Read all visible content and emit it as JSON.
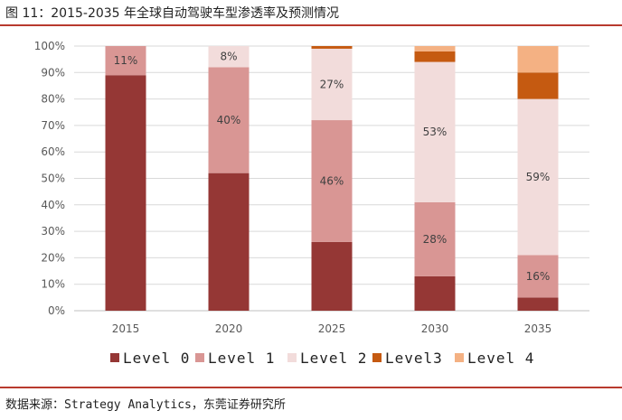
{
  "header": {
    "title": "图 11：2015-2035 年全球自动驾驶车型渗透率及预测情况"
  },
  "footer": {
    "source": "数据来源：Strategy Analytics，东莞证券研究所"
  },
  "chart_data": {
    "type": "bar",
    "stacked": true,
    "title": "",
    "xlabel": "",
    "ylabel": "",
    "ylim": [
      0,
      100
    ],
    "y_ticks": [
      "0%",
      "10%",
      "20%",
      "30%",
      "40%",
      "50%",
      "60%",
      "70%",
      "80%",
      "90%",
      "100%"
    ],
    "categories": [
      "2015",
      "2020",
      "2025",
      "2030",
      "2035"
    ],
    "grid": true,
    "legend_position": "bottom",
    "series": [
      {
        "name": "Level 0",
        "color": "#953735",
        "values": [
          89,
          52,
          26,
          13,
          5
        ],
        "labels": [
          "",
          "",
          "",
          "",
          ""
        ]
      },
      {
        "name": "Level 1",
        "color": "#d99694",
        "values": [
          11,
          40,
          46,
          28,
          16
        ],
        "labels": [
          "11%",
          "40%",
          "46%",
          "28%",
          "16%"
        ]
      },
      {
        "name": "Level 2",
        "color": "#f2dcdb",
        "values": [
          0,
          8,
          27,
          53,
          59
        ],
        "labels": [
          "",
          "8%",
          "27%",
          "53%",
          "59%"
        ]
      },
      {
        "name": "Level3",
        "color": "#c55a11",
        "values": [
          0,
          0,
          1,
          4,
          10
        ],
        "labels": [
          "",
          "",
          "",
          "",
          ""
        ]
      },
      {
        "name": "Level 4",
        "color": "#f4b183",
        "values": [
          0,
          0,
          0,
          2,
          10
        ],
        "labels": [
          "",
          "",
          "",
          "",
          ""
        ]
      }
    ]
  }
}
